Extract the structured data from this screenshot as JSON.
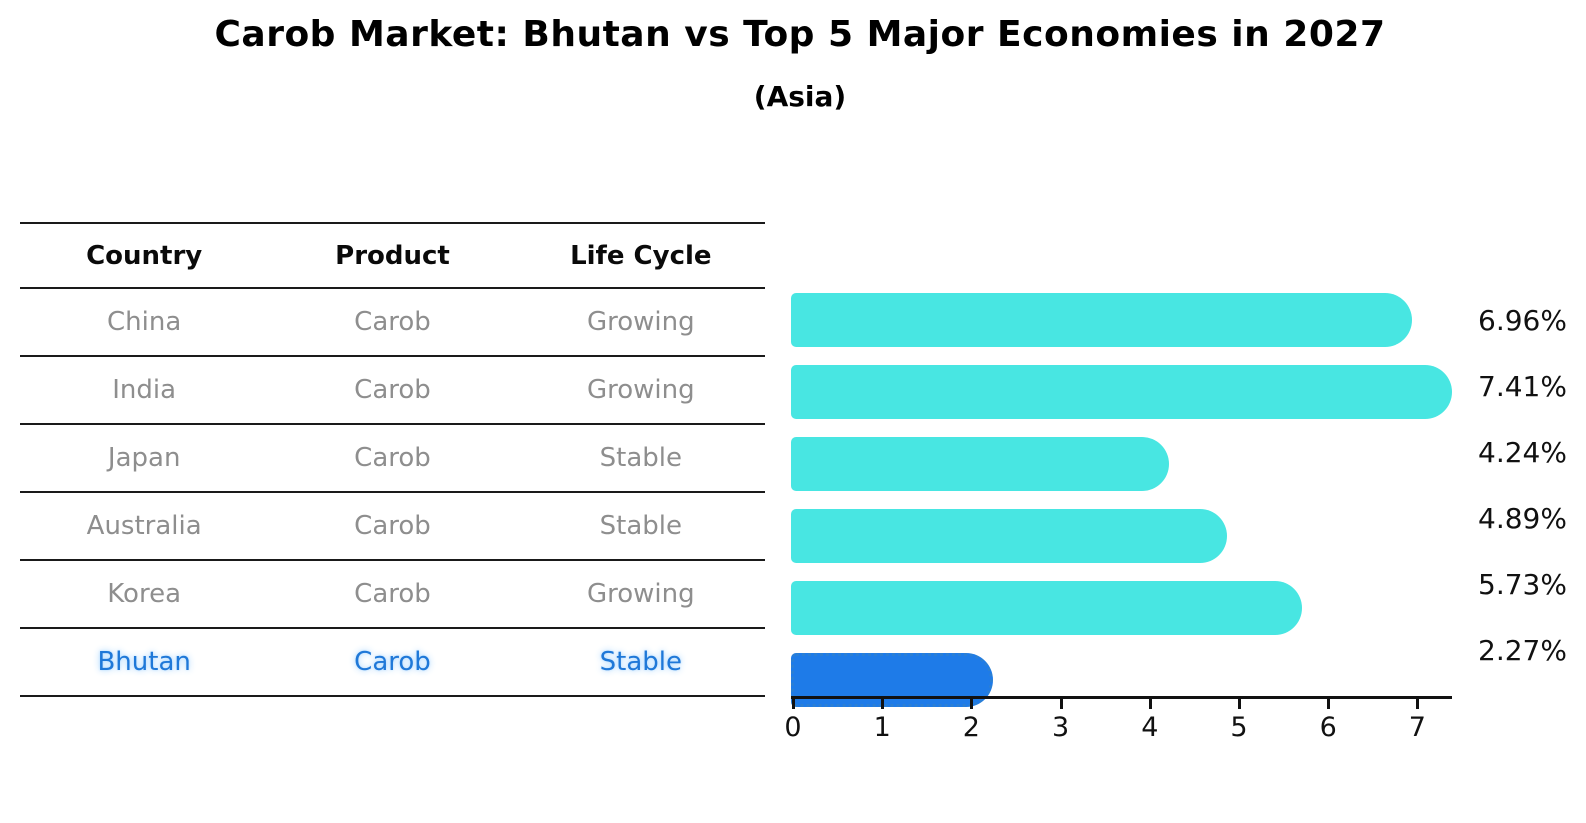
{
  "title": "Carob Market: Bhutan vs Top 5 Major Economies in 2027",
  "subtitle": "(Asia)",
  "table": {
    "headers": [
      "Country",
      "Product",
      "Life Cycle"
    ],
    "rows": [
      {
        "country": "China",
        "product": "Carob",
        "life_cycle": "Growing",
        "highlight": false
      },
      {
        "country": "India",
        "product": "Carob",
        "life_cycle": "Growing",
        "highlight": false
      },
      {
        "country": "Japan",
        "product": "Carob",
        "life_cycle": "Stable",
        "highlight": false
      },
      {
        "country": "Australia",
        "product": "Carob",
        "life_cycle": "Stable",
        "highlight": false
      },
      {
        "country": "Korea",
        "product": "Carob",
        "life_cycle": "Growing",
        "highlight": false
      },
      {
        "country": "Bhutan",
        "product": "Carob",
        "life_cycle": "Stable",
        "highlight": true
      }
    ]
  },
  "chart_data": {
    "type": "bar",
    "orientation": "horizontal",
    "title": "Carob Market: Bhutan vs Top 5 Major Economies in 2027",
    "subtitle": "(Asia)",
    "categories": [
      "China",
      "India",
      "Japan",
      "Australia",
      "Korea",
      "Bhutan"
    ],
    "values": [
      6.96,
      7.41,
      4.24,
      4.89,
      5.73,
      2.27
    ],
    "value_labels": [
      "6.96%",
      "7.41%",
      "4.24%",
      "4.89%",
      "5.73%",
      "2.27%"
    ],
    "highlight_index": 5,
    "xlim": [
      0,
      7.5
    ],
    "xticks": [
      0,
      1,
      2,
      3,
      4,
      5,
      6,
      7
    ],
    "grid": false,
    "legend": false,
    "bar_color": "#48e6e2",
    "highlight_bar_color": "#1e7be8",
    "highlight_text_color": "#1f78d8",
    "axis_color": "#111111",
    "table_text_color": "#8e8e8e"
  }
}
